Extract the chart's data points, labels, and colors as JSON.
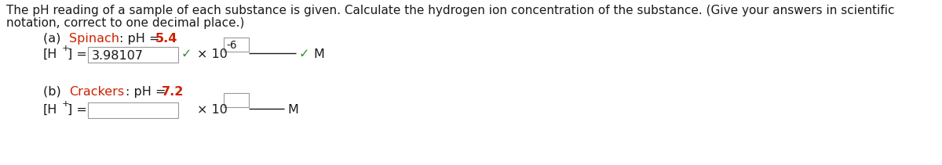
{
  "bg_color": "#ffffff",
  "text_color": "#1a1a1a",
  "red_color": "#cc2200",
  "green_color": "#3a8a3a",
  "intro_line1": "The pH reading of a sample of each substance is given. Calculate the hydrogen ion concentration of the substance. (Give your answers in scientific",
  "intro_line2": "notation, correct to one decimal place.)",
  "part_a_substance": "Spinach",
  "part_a_ph_val": "5.4",
  "part_a_answer": "3.98107",
  "part_a_exp": "-6",
  "part_b_substance": "Crackers",
  "part_b_ph_val": "7.2",
  "font_size_intro": 11.0,
  "font_size_part": 11.5,
  "box_edge": "#999999"
}
